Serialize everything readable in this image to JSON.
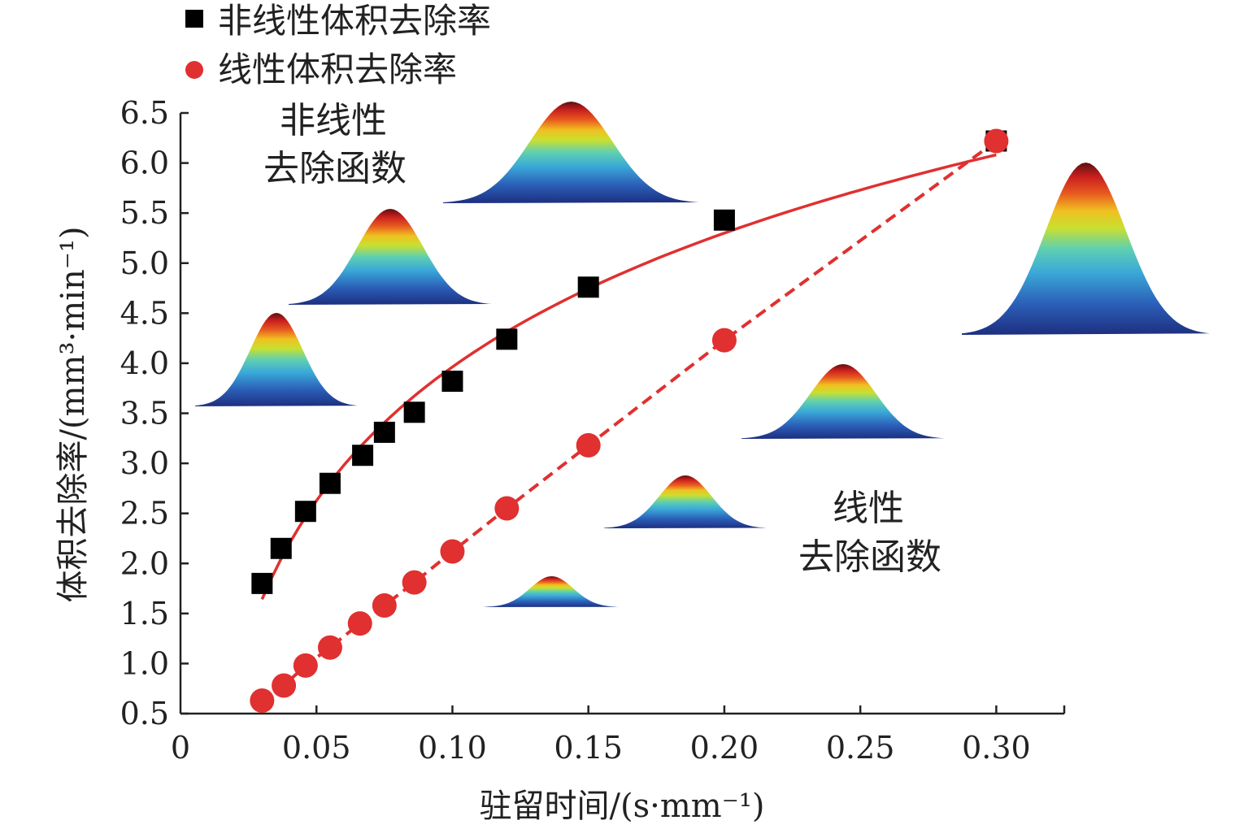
{
  "chart_data": {
    "type": "scatter",
    "title": "",
    "xlabel": "驻留时间/(s·mm⁻¹)",
    "ylabel": "体积去除率/(mm³·min⁻¹)",
    "xlim": [
      0,
      0.325
    ],
    "ylim": [
      0.5,
      6.5
    ],
    "x_ticks": [
      "0",
      "0.05",
      "0.10",
      "0.15",
      "0.20",
      "0.25",
      "0.30"
    ],
    "x_tick_values": [
      0,
      0.05,
      0.1,
      0.15,
      0.2,
      0.25,
      0.3
    ],
    "y_ticks": [
      "0.5",
      "1.0",
      "1.5",
      "2.0",
      "2.5",
      "3.0",
      "3.5",
      "4.0",
      "4.5",
      "5.0",
      "5.5",
      "6.0",
      "6.5"
    ],
    "y_tick_values": [
      0.5,
      1.0,
      1.5,
      2.0,
      2.5,
      3.0,
      3.5,
      4.0,
      4.5,
      5.0,
      5.5,
      6.0,
      6.5
    ],
    "grid": false,
    "legend_position": "top-left",
    "series": [
      {
        "name": "非线性体积去除率",
        "marker": "square",
        "color": "#000000",
        "line": "solid",
        "line_color": "#e03030",
        "x": [
          0.03,
          0.037,
          0.046,
          0.055,
          0.067,
          0.075,
          0.086,
          0.1,
          0.12,
          0.15,
          0.2,
          0.3
        ],
        "y": [
          1.8,
          2.15,
          2.52,
          2.8,
          3.08,
          3.31,
          3.51,
          3.82,
          4.24,
          4.76,
          5.43,
          6.22
        ]
      },
      {
        "name": "线性体积去除率",
        "marker": "circle",
        "color": "#e03030",
        "line": "dashed",
        "line_color": "#e03030",
        "x": [
          0.03,
          0.038,
          0.046,
          0.055,
          0.066,
          0.075,
          0.086,
          0.1,
          0.12,
          0.15,
          0.2,
          0.3
        ],
        "y": [
          0.63,
          0.78,
          0.98,
          1.16,
          1.4,
          1.58,
          1.81,
          2.12,
          2.55,
          3.18,
          4.23,
          6.22
        ]
      }
    ],
    "annotations": [
      {
        "lines": [
          "非线性",
          "去除函数"
        ]
      },
      {
        "lines": [
          "线性",
          "去除函数"
        ]
      }
    ],
    "gaussian_insets": {
      "colors": [
        "#1d2f80",
        "#2b5fb8",
        "#3aa8d8",
        "#5fd0b0",
        "#c8e030",
        "#f0c020",
        "#e85a20",
        "#c81e1e",
        "#5a1010"
      ]
    }
  }
}
